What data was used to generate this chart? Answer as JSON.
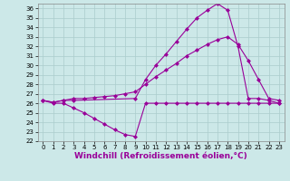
{
  "title": "",
  "xlabel": "Windchill (Refroidissement éolien,°C)",
  "ylabel": "",
  "background_color": "#cce8e8",
  "line_color": "#990099",
  "xlim": [
    -0.5,
    23.5
  ],
  "ylim": [
    22,
    36.5
  ],
  "yticks": [
    22,
    23,
    24,
    25,
    26,
    27,
    28,
    29,
    30,
    31,
    32,
    33,
    34,
    35,
    36
  ],
  "xticks": [
    0,
    1,
    2,
    3,
    4,
    5,
    6,
    7,
    8,
    9,
    10,
    11,
    12,
    13,
    14,
    15,
    16,
    17,
    18,
    19,
    20,
    21,
    22,
    23
  ],
  "series": [
    {
      "x": [
        0,
        1,
        2,
        3,
        4,
        5,
        6,
        7,
        8,
        9,
        10,
        11,
        12,
        13,
        14,
        15,
        16,
        17,
        18,
        19,
        20,
        21,
        22,
        23
      ],
      "y": [
        26.3,
        26.0,
        26.0,
        25.5,
        25.0,
        24.4,
        23.8,
        23.2,
        22.7,
        22.5,
        26.0,
        26.0,
        26.0,
        26.0,
        26.0,
        26.0,
        26.0,
        26.0,
        26.0,
        26.0,
        26.0,
        26.0,
        26.0,
        26.0
      ]
    },
    {
      "x": [
        0,
        1,
        2,
        3,
        4,
        5,
        6,
        7,
        8,
        9,
        10,
        11,
        12,
        13,
        14,
        15,
        16,
        17,
        18,
        19,
        20,
        21,
        22,
        23
      ],
      "y": [
        26.3,
        26.1,
        26.3,
        26.5,
        26.5,
        26.6,
        26.7,
        26.8,
        27.0,
        27.2,
        28.0,
        28.8,
        29.5,
        30.2,
        31.0,
        31.6,
        32.2,
        32.7,
        33.0,
        32.2,
        30.5,
        28.5,
        26.5,
        26.3
      ]
    },
    {
      "x": [
        0,
        1,
        2,
        3,
        9,
        10,
        11,
        12,
        13,
        14,
        15,
        16,
        17,
        18,
        19,
        20,
        21,
        22,
        23
      ],
      "y": [
        26.3,
        26.1,
        26.3,
        26.3,
        26.5,
        28.5,
        30.0,
        31.2,
        32.5,
        33.8,
        35.0,
        35.8,
        36.5,
        35.8,
        32.0,
        26.5,
        26.5,
        26.3,
        26.0
      ]
    }
  ],
  "marker": "D",
  "markersize": 2.0,
  "linewidth": 0.8,
  "grid_color": "#aacccc",
  "xlabel_fontsize": 6.5,
  "tick_fontsize": 5.0
}
